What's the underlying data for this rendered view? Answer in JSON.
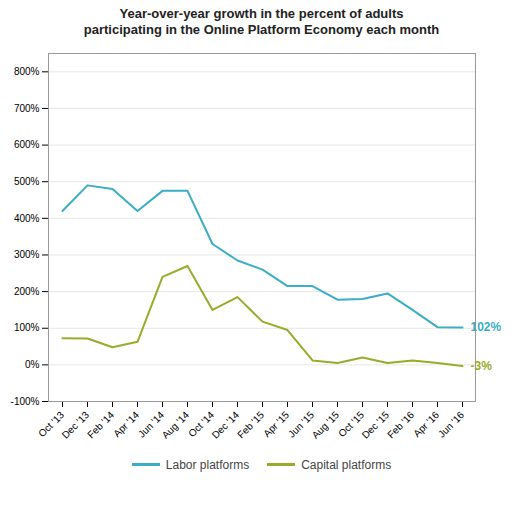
{
  "chart_data": {
    "type": "line",
    "title": "Year-over-year growth in the percent of adults\nparticipating in the Online Platform Economy each month",
    "categories": [
      "Oct '13",
      "Dec '13",
      "Feb '14",
      "Apr '14",
      "Jun '14",
      "Aug '14",
      "Oct '14",
      "Dec '14",
      "Feb '15",
      "Apr '15",
      "Jun '15",
      "Aug '15",
      "Oct '15",
      "Dec '15",
      "Feb '16",
      "Apr '16",
      "Jun '16"
    ],
    "series": [
      {
        "name": "Labor platforms",
        "color": "#3aadc7",
        "values": [
          420,
          490,
          480,
          420,
          475,
          475,
          330,
          285,
          260,
          215,
          215,
          178,
          180,
          195,
          150,
          103,
          102
        ]
      },
      {
        "name": "Capital platforms",
        "color": "#9aab2a",
        "values": [
          73,
          72,
          48,
          63,
          240,
          270,
          150,
          185,
          118,
          95,
          12,
          5,
          20,
          5,
          12,
          5,
          -3
        ]
      }
    ],
    "ylim": [
      -100,
      850
    ],
    "yticks": [
      {
        "value": -100,
        "label": "-100%"
      },
      {
        "value": 0,
        "label": "0%"
      },
      {
        "value": 100,
        "label": "100%"
      },
      {
        "value": 200,
        "label": "200%"
      },
      {
        "value": 300,
        "label": "300%"
      },
      {
        "value": 400,
        "label": "400%"
      },
      {
        "value": 500,
        "label": "500%"
      },
      {
        "value": 600,
        "label": "600%"
      },
      {
        "value": 700,
        "label": "700%"
      },
      {
        "value": 800,
        "label": "800%"
      }
    ],
    "grid": true,
    "legend": "bottom",
    "annotations": [
      {
        "text": "102%",
        "x": "Jun '16",
        "y": 102,
        "color": "#3aadc7"
      },
      {
        "text": "-3%",
        "x": "Jun '16",
        "y": -3,
        "color": "#9aab2a"
      }
    ]
  }
}
